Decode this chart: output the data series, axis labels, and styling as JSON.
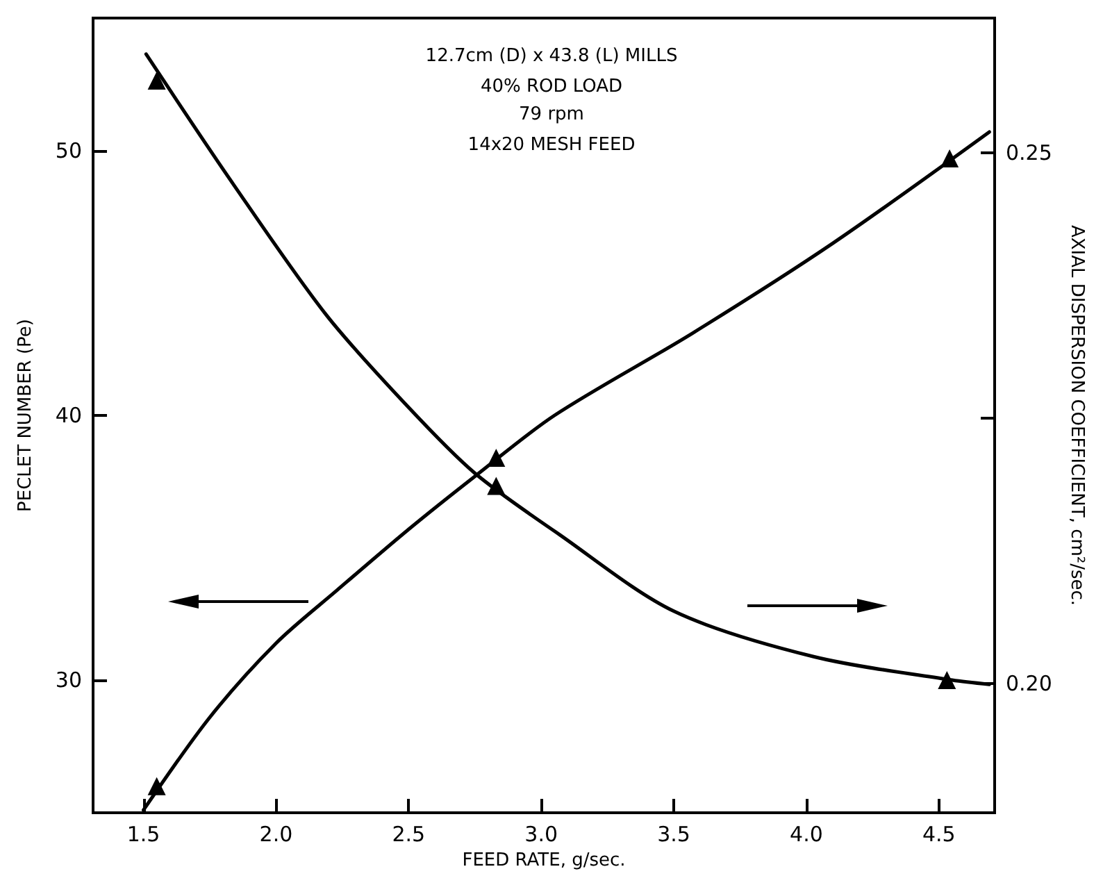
{
  "chart_data": {
    "type": "scatter",
    "xlabel": "FEED RATE, g/sec.",
    "ylabel": "PECLET NUMBER (Pe)",
    "y2label": "AXIAL DISPERSION COEFFICIENT, cm²/sec.",
    "annotations": [
      "12.7cm (D) x 43.8 (L) MILLS",
      "40% ROD LOAD",
      "79 rpm",
      "14x20 MESH FEED"
    ],
    "series": [
      {
        "color": "#000000",
        "x": [
          1.55,
          2.83,
          4.54
        ],
        "values": [
          26.0,
          38.4,
          49.7
        ]
      },
      {
        "axis": "y2",
        "color": "#000000",
        "x": [
          1.55,
          2.83,
          4.53
        ],
        "values": [
          0.2568,
          0.2186,
          0.2003
        ]
      },
      {
        "type": "line",
        "color": "#000000",
        "marker": "none",
        "x": [
          1.5,
          1.75,
          2.0,
          2.23,
          2.5,
          2.75,
          3.05,
          3.57,
          4.1,
          4.69
        ],
        "values": [
          25.1,
          28.6,
          31.4,
          33.4,
          35.7,
          37.7,
          40.0,
          43.1,
          46.5,
          50.7
        ]
      },
      {
        "type": "line",
        "axis": "y2",
        "color": "#000000",
        "marker": "none",
        "x": [
          1.51,
          1.84,
          2.19,
          2.5,
          2.75,
          3.07,
          3.5,
          4.03,
          4.55,
          4.69
        ],
        "values": [
          0.2593,
          0.247,
          0.2347,
          0.226,
          0.2198,
          0.214,
          0.2068,
          0.2025,
          0.2003,
          0.1999
        ]
      }
    ],
    "marker": "triangle",
    "xlim": [
      1.31,
      4.71
    ],
    "xticks": [
      1.5,
      {
        "value": 2,
        "label": "2.0"
      },
      2.5,
      {
        "value": 3,
        "label": "3.0"
      },
      3.5,
      {
        "value": 4,
        "label": "4.0"
      },
      4.5
    ],
    "ylim": [
      25,
      55
    ],
    "yticks": [
      30,
      40,
      50
    ],
    "y2lim": [
      0.1878,
      0.2627
    ],
    "y2ticks": [
      {
        "value": 0.2,
        "label": "0.20"
      },
      {
        "value": 0.225,
        "label": null
      },
      {
        "value": 0.25,
        "label": "0.25"
      }
    ],
    "grid": false
  }
}
